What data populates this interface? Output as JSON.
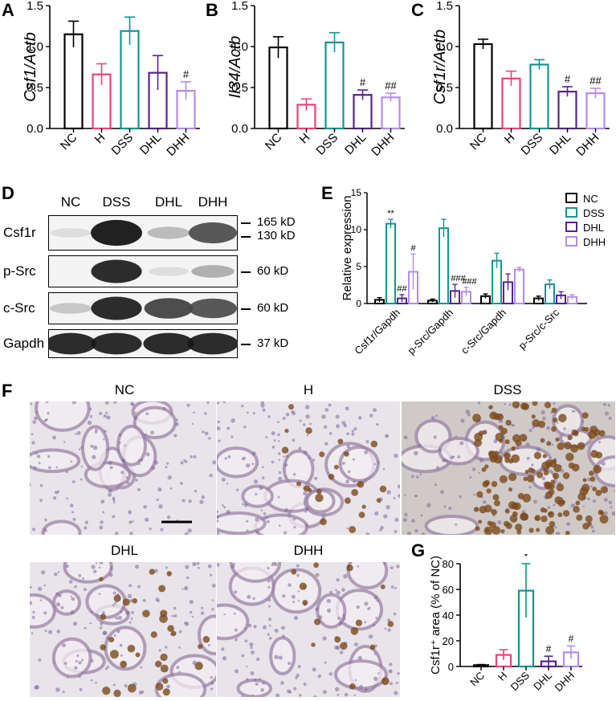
{
  "colors": {
    "NC": "#000000",
    "H": "#e8437a",
    "DSS": "#14958f",
    "DHL": "#56248f",
    "DHH": "#b48de8"
  },
  "panels": {
    "A": "A",
    "B": "B",
    "C": "C",
    "D": "D",
    "E": "E",
    "F": "F",
    "G": "G"
  },
  "chart_data": [
    {
      "id": "A",
      "type": "bar",
      "ylabel": "Csf1/Actb",
      "categories": [
        "NC",
        "H",
        "DSS",
        "DHL",
        "DHH"
      ],
      "values": [
        1.15,
        0.66,
        1.19,
        0.68,
        0.46
      ],
      "errors": [
        0.16,
        0.13,
        0.17,
        0.21,
        0.11
      ],
      "annotations": [
        "",
        "",
        "",
        "",
        "#"
      ],
      "ylim": [
        0,
        1.5
      ],
      "yticks": [
        "0.0",
        "0.5",
        "1.0",
        "1.5"
      ]
    },
    {
      "id": "B",
      "type": "bar",
      "ylabel": "Il34/Actb",
      "categories": [
        "NC",
        "H",
        "DSS",
        "DHL",
        "DHH"
      ],
      "values": [
        0.99,
        0.29,
        1.05,
        0.41,
        0.38
      ],
      "errors": [
        0.13,
        0.07,
        0.12,
        0.06,
        0.05
      ],
      "annotations": [
        "",
        "",
        "",
        "#",
        "##"
      ],
      "ylim": [
        0,
        1.5
      ],
      "yticks": [
        "0.0",
        "0.5",
        "1.0",
        "1.5"
      ]
    },
    {
      "id": "C",
      "type": "bar",
      "ylabel": "Csf1r/Actb",
      "categories": [
        "NC",
        "H",
        "DSS",
        "DHL",
        "DHH"
      ],
      "values": [
        1.03,
        0.61,
        0.78,
        0.45,
        0.43
      ],
      "errors": [
        0.06,
        0.09,
        0.06,
        0.06,
        0.06
      ],
      "annotations": [
        "",
        "",
        "",
        "#",
        "##"
      ],
      "ylim": [
        0,
        1.5
      ],
      "yticks": [
        "0.0",
        "0.5",
        "1.0",
        "1.5"
      ]
    },
    {
      "id": "E",
      "type": "bar",
      "ylabel": "Relative expression",
      "categories": [
        "Csf1r/Gapdh",
        "p-Src/Gapdh",
        "c-Src/Gapdh",
        "p-Src/c-Src"
      ],
      "legend_position": "top-right",
      "series": [
        {
          "name": "NC",
          "values": [
            0.5,
            0.4,
            1.0,
            0.7
          ],
          "errors": [
            0.3,
            0.2,
            0.3,
            0.3
          ],
          "annotations": [
            "",
            "",
            "",
            ""
          ]
        },
        {
          "name": "DSS",
          "values": [
            10.8,
            10.2,
            5.8,
            2.6
          ],
          "errors": [
            0.6,
            1.2,
            1.0,
            0.6
          ],
          "annotations": [
            "**",
            "",
            "",
            ""
          ]
        },
        {
          "name": "DHL",
          "values": [
            0.7,
            1.7,
            2.9,
            1.1
          ],
          "errors": [
            0.5,
            0.9,
            1.1,
            0.5
          ],
          "annotations": [
            "##",
            "###",
            "",
            ""
          ]
        },
        {
          "name": "DHH",
          "values": [
            4.3,
            1.6,
            4.6,
            0.9
          ],
          "errors": [
            2.4,
            0.6,
            0.3,
            0.3
          ],
          "annotations": [
            "#",
            "###",
            "",
            ""
          ]
        }
      ],
      "ylim": [
        0,
        15
      ],
      "yticks": [
        "0",
        "5",
        "10",
        "15"
      ]
    },
    {
      "id": "G",
      "type": "bar",
      "ylabel": "Csf1r⁺ area (% of NC)",
      "categories": [
        "NC",
        "H",
        "DSS",
        "DHL",
        "DHH"
      ],
      "values": [
        1,
        9,
        59,
        4,
        11
      ],
      "errors": [
        0.5,
        4,
        21,
        4,
        5
      ],
      "annotations": [
        "",
        "",
        "*",
        "#",
        "#"
      ],
      "ylim": [
        0,
        80
      ],
      "yticks": [
        "0",
        "20",
        "40",
        "60",
        "80"
      ]
    }
  ],
  "western": {
    "lanes": [
      "NC",
      "DSS",
      "DHL",
      "DHH"
    ],
    "rows": [
      {
        "label": "Csf1r",
        "mw": [
          "165 kD",
          "130 kD"
        ],
        "intensity": [
          0.15,
          1.0,
          0.3,
          0.75
        ]
      },
      {
        "label": "p-Src",
        "mw": [
          "60 kD"
        ],
        "intensity": [
          0.05,
          0.95,
          0.15,
          0.35
        ]
      },
      {
        "label": "c-Src",
        "mw": [
          "60 kD"
        ],
        "intensity": [
          0.25,
          0.95,
          0.8,
          0.75
        ]
      },
      {
        "label": "Gapdh",
        "mw": [
          "37 kD"
        ],
        "intensity": [
          0.95,
          0.95,
          0.95,
          0.95
        ]
      }
    ]
  },
  "histology": [
    {
      "title": "NC",
      "stain": 0.0,
      "scalebar": true
    },
    {
      "title": "H",
      "stain": 0.15,
      "scalebar": false
    },
    {
      "title": "DSS",
      "stain": 1.0,
      "scalebar": false
    },
    {
      "title": "DHL",
      "stain": 0.2,
      "scalebar": false
    },
    {
      "title": "DHH",
      "stain": 0.1,
      "scalebar": false
    }
  ]
}
